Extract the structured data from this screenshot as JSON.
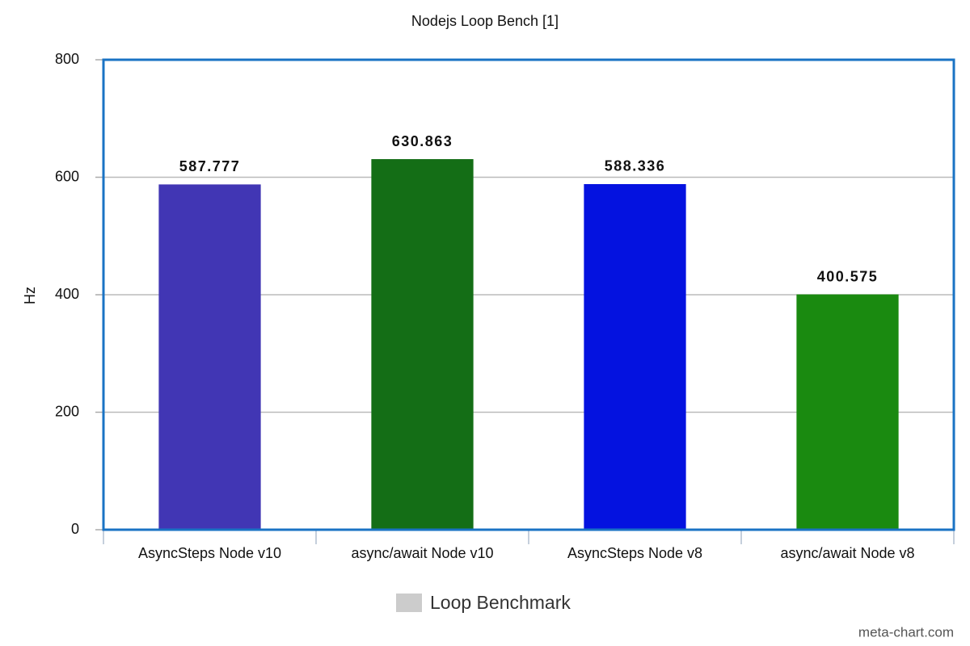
{
  "chart_data": {
    "type": "bar",
    "title": "Nodejs Loop Bench [1]",
    "y_label": "Hz",
    "categories": [
      "AsyncSteps Node v10",
      "async/await Node v10",
      "AsyncSteps Node v8",
      "async/await Node v8"
    ],
    "series": [
      {
        "name": "Loop Benchmark",
        "color": "#cccccc",
        "values": [
          587.777,
          630.863,
          588.336,
          400.575
        ],
        "bar_colors": [
          "#4136b4",
          "#146e16",
          "#0412e0",
          "#1a8a10"
        ]
      }
    ],
    "ylim": [
      0,
      800
    ],
    "yticks": [
      0,
      200,
      400,
      600,
      800
    ],
    "grid": true,
    "watermark": "meta-chart.com"
  }
}
